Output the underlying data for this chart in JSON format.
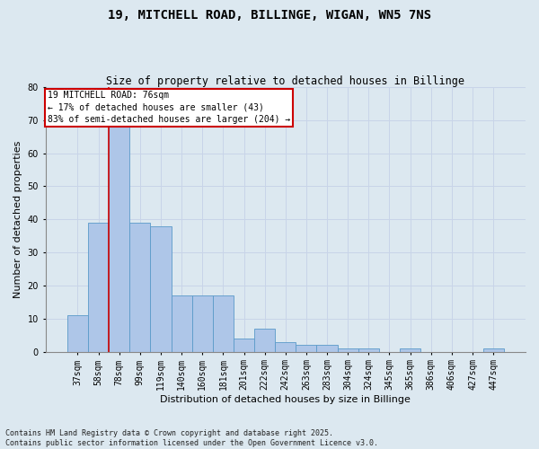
{
  "title": "19, MITCHELL ROAD, BILLINGE, WIGAN, WN5 7NS",
  "subtitle": "Size of property relative to detached houses in Billinge",
  "xlabel": "Distribution of detached houses by size in Billinge",
  "ylabel": "Number of detached properties",
  "categories": [
    "37sqm",
    "58sqm",
    "78sqm",
    "99sqm",
    "119sqm",
    "140sqm",
    "160sqm",
    "181sqm",
    "201sqm",
    "222sqm",
    "242sqm",
    "263sqm",
    "283sqm",
    "304sqm",
    "324sqm",
    "345sqm",
    "365sqm",
    "386sqm",
    "406sqm",
    "427sqm",
    "447sqm"
  ],
  "values": [
    11,
    39,
    68,
    39,
    38,
    17,
    17,
    17,
    4,
    7,
    3,
    2,
    2,
    1,
    1,
    0,
    1,
    0,
    0,
    0,
    1
  ],
  "bar_color": "#aec6e8",
  "bar_edge_color": "#5a9ac9",
  "grid_color": "#c8d4e8",
  "background_color": "#dce8f0",
  "fig_background_color": "#dce8f0",
  "vline_x": 1.5,
  "vline_color": "#cc0000",
  "annotation_text": "19 MITCHELL ROAD: 76sqm\n← 17% of detached houses are smaller (43)\n83% of semi-detached houses are larger (204) →",
  "annotation_box_color": "#ffffff",
  "annotation_box_edge": "#cc0000",
  "footer": "Contains HM Land Registry data © Crown copyright and database right 2025.\nContains public sector information licensed under the Open Government Licence v3.0.",
  "ylim": [
    0,
    80
  ],
  "yticks": [
    0,
    10,
    20,
    30,
    40,
    50,
    60,
    70,
    80
  ],
  "title_fontsize": 10,
  "subtitle_fontsize": 8.5,
  "xlabel_fontsize": 8,
  "ylabel_fontsize": 8,
  "tick_fontsize": 7,
  "annotation_fontsize": 7,
  "footer_fontsize": 6
}
